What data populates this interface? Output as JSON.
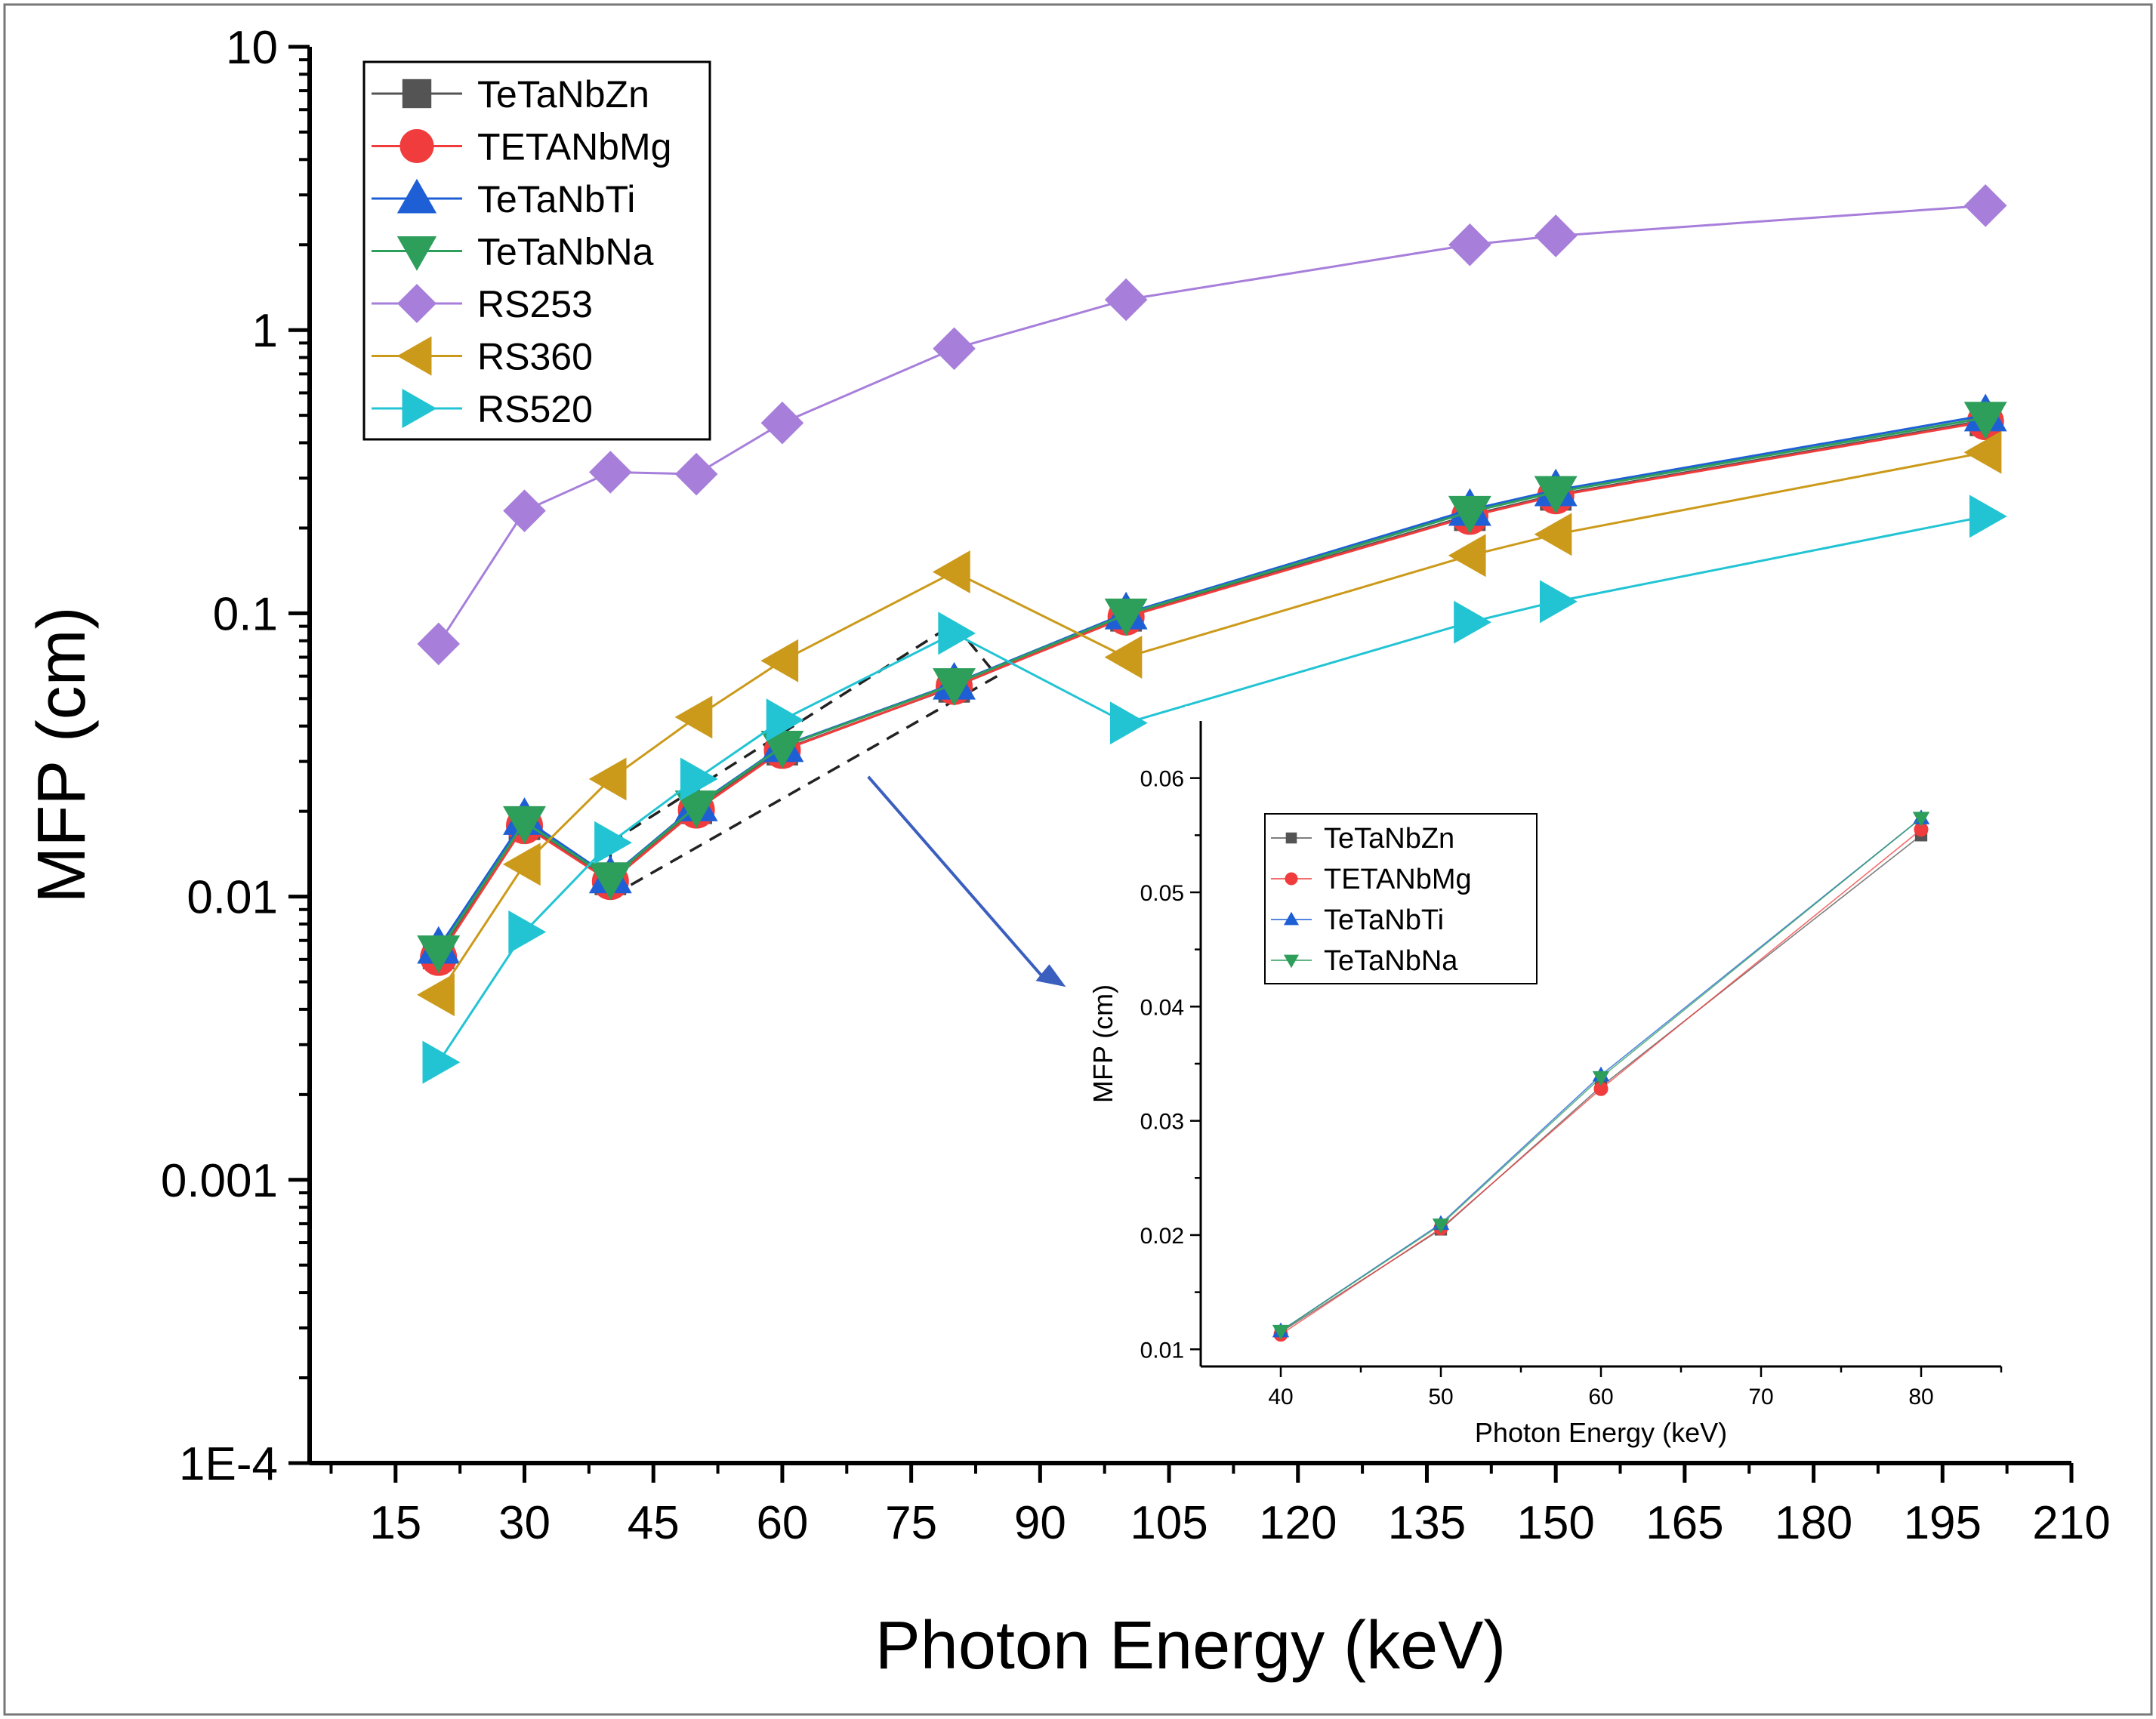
{
  "chart_data": [
    {
      "type": "line",
      "role": "main",
      "xlabel": "Photon Energy (keV)",
      "ylabel": "MFP (cm)",
      "xscale": "linear",
      "yscale": "log",
      "xlim": [
        5,
        210
      ],
      "ylim": [
        0.0001,
        10
      ],
      "xticks": [
        15,
        30,
        45,
        60,
        75,
        90,
        105,
        120,
        135,
        150,
        165,
        180,
        195,
        210
      ],
      "yticks": [
        0.0001,
        0.001,
        0.01,
        0.1,
        1,
        10
      ],
      "ytick_labels": [
        "1E-4",
        "0.001",
        "0.01",
        "0.1",
        "1",
        "10"
      ],
      "legend_position": "top-left",
      "series": [
        {
          "name": "TeTaNbZn",
          "marker": "square",
          "color": "#545454",
          "x": [
            20,
            30,
            40,
            50,
            60,
            80,
            100,
            140,
            150,
            200
          ],
          "values": [
            0.0063,
            0.018,
            0.0115,
            0.0205,
            0.033,
            0.055,
            0.098,
            0.222,
            0.262,
            0.48
          ]
        },
        {
          "name": "TETANbMg",
          "marker": "circle",
          "color": "#f03c3c",
          "x": [
            20,
            30,
            40,
            50,
            60,
            80,
            100,
            140,
            150,
            200
          ],
          "values": [
            0.0061,
            0.0178,
            0.0113,
            0.0202,
            0.0328,
            0.0552,
            0.097,
            0.22,
            0.26,
            0.475
          ]
        },
        {
          "name": "TeTaNbTi",
          "marker": "triangle-up",
          "color": "#1f5fd6",
          "x": [
            20,
            30,
            40,
            50,
            60,
            80,
            100,
            140,
            150,
            200
          ],
          "values": [
            0.0066,
            0.0188,
            0.0117,
            0.021,
            0.034,
            0.0565,
            0.1,
            0.232,
            0.272,
            0.5
          ]
        },
        {
          "name": "TeTaNbNa",
          "marker": "triangle-down",
          "color": "#2e9e5b",
          "x": [
            20,
            30,
            40,
            50,
            60,
            80,
            100,
            140,
            150,
            200
          ],
          "values": [
            0.0064,
            0.0183,
            0.0116,
            0.0208,
            0.0338,
            0.0562,
            0.099,
            0.228,
            0.268,
            0.49
          ]
        },
        {
          "name": "RS253",
          "marker": "diamond",
          "color": "#a77fdb",
          "x": [
            20,
            30,
            40,
            50,
            60,
            80,
            100,
            140,
            150,
            200
          ],
          "values": [
            0.078,
            0.23,
            0.315,
            0.31,
            0.47,
            0.86,
            1.28,
            2.0,
            2.15,
            2.75
          ]
        },
        {
          "name": "RS360",
          "marker": "triangle-left",
          "color": "#cc9a1a",
          "x": [
            20,
            30,
            40,
            50,
            60,
            80,
            100,
            140,
            150,
            200
          ],
          "values": [
            0.0045,
            0.013,
            0.026,
            0.043,
            0.068,
            0.14,
            0.07,
            0.16,
            0.19,
            0.37
          ]
        },
        {
          "name": "RS520",
          "marker": "triangle-right",
          "color": "#22c4d4",
          "x": [
            20,
            30,
            40,
            50,
            60,
            80,
            100,
            140,
            150,
            200
          ],
          "values": [
            0.0026,
            0.0075,
            0.0155,
            0.026,
            0.042,
            0.085,
            0.041,
            0.093,
            0.11,
            0.22
          ]
        }
      ]
    },
    {
      "type": "line",
      "role": "inset",
      "xlabel": "Photon Energy (keV)",
      "ylabel": "MFP (cm)",
      "xlim": [
        35,
        85
      ],
      "ylim": [
        0.0085,
        0.065
      ],
      "xticks": [
        40,
        50,
        60,
        70,
        80
      ],
      "yticks": [
        0.01,
        0.02,
        0.03,
        0.04,
        0.05,
        0.06
      ],
      "ytick_labels": [
        "0.01",
        "0.02",
        "0.03",
        "0.04",
        "0.05",
        "0.06"
      ],
      "legend_position": "upper-left",
      "series": [
        {
          "name": "TeTaNbZn",
          "marker": "square",
          "color": "#545454",
          "x": [
            40,
            50,
            60,
            80
          ],
          "values": [
            0.0115,
            0.0205,
            0.033,
            0.055
          ]
        },
        {
          "name": "TETANbMg",
          "marker": "circle",
          "color": "#f03c3c",
          "x": [
            40,
            50,
            60,
            80
          ],
          "values": [
            0.0113,
            0.0206,
            0.0328,
            0.0555
          ]
        },
        {
          "name": "TeTaNbTi",
          "marker": "triangle-up",
          "color": "#1f5fd6",
          "x": [
            40,
            50,
            60,
            80
          ],
          "values": [
            0.0116,
            0.021,
            0.034,
            0.0565
          ]
        },
        {
          "name": "TeTaNbNa",
          "marker": "triangle-down",
          "color": "#2e9e5b",
          "x": [
            40,
            50,
            60,
            80
          ],
          "values": [
            0.0116,
            0.0209,
            0.0338,
            0.0565
          ]
        }
      ]
    }
  ]
}
